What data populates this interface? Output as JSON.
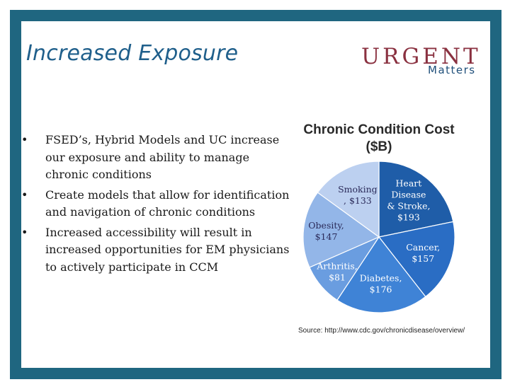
{
  "slide": {
    "title": "Increased Exposure",
    "logo": {
      "top": "URGENT",
      "bottom": "Matters"
    },
    "bullets": [
      "FSED’s, Hybrid Models and UC increase our exposure and ability to manage chronic conditions",
      "Create models that allow for identification and navigation of chronic conditions",
      "Increased accessibility will result in increased opportunities for EM physicians  to actively participate in CCM"
    ],
    "bullet_symbol": "•",
    "source": "Source: http://www.cdc.gov/chronicdisease/overview/",
    "colors": {
      "border": "#1f6680",
      "title": "#1f5f8b"
    }
  },
  "chart_data": {
    "type": "pie",
    "title": "Chronic Condition Cost ($B)",
    "unit": "$B",
    "slices": [
      {
        "label": "Heart Disease & Stroke",
        "label_lines": [
          "Heart",
          "Disease",
          "& Stroke,",
          "$193"
        ],
        "value": 193,
        "color": "#1f5da8"
      },
      {
        "label": "Cancer",
        "label_lines": [
          "Cancer,",
          "$157"
        ],
        "value": 157,
        "color": "#2a6dc4"
      },
      {
        "label": "Diabetes",
        "label_lines": [
          "Diabetes,",
          "$176"
        ],
        "value": 176,
        "color": "#3f83d6"
      },
      {
        "label": "Arthritis",
        "label_lines": [
          "Arthritis,",
          "$81"
        ],
        "value": 81,
        "color": "#6a9de0"
      },
      {
        "label": "Obesity",
        "label_lines": [
          "Obesity,",
          "$147"
        ],
        "value": 147,
        "color": "#93b6e8"
      },
      {
        "label": "Smoking",
        "label_lines": [
          "Smoking",
          ", $133"
        ],
        "value": 133,
        "color": "#bcd0f0"
      }
    ]
  }
}
